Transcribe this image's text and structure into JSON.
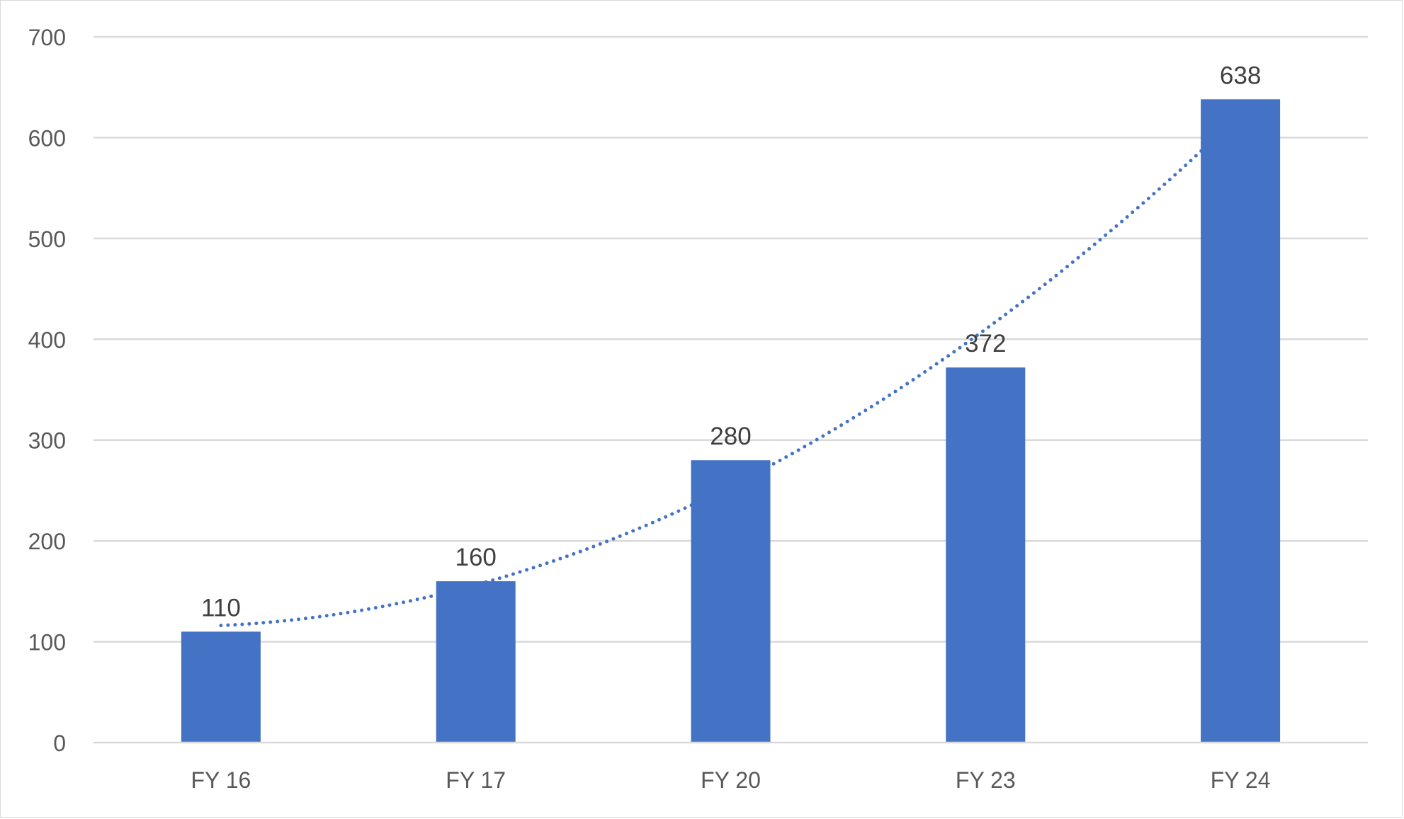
{
  "chart_data": {
    "type": "bar",
    "categories": [
      "FY 16",
      "FY 17",
      "FY 20",
      "FY 23",
      "FY 24"
    ],
    "values": [
      110,
      160,
      280,
      372,
      638
    ],
    "data_labels": [
      "110",
      "160",
      "280",
      "372",
      "638"
    ],
    "title": "",
    "xlabel": "",
    "ylabel": "",
    "ylim": [
      0,
      700
    ],
    "yticks": [
      0,
      100,
      200,
      300,
      400,
      500,
      600,
      700
    ],
    "ytick_labels": [
      "0",
      "100",
      "200",
      "300",
      "400",
      "500",
      "600",
      "700"
    ],
    "grid": true,
    "legend": "none",
    "trendline": {
      "type": "polynomial",
      "style": "dotted"
    },
    "colors": {
      "bar": "#4472C4",
      "trendline": "#4472C4",
      "grid": "#D9D9D9"
    }
  }
}
